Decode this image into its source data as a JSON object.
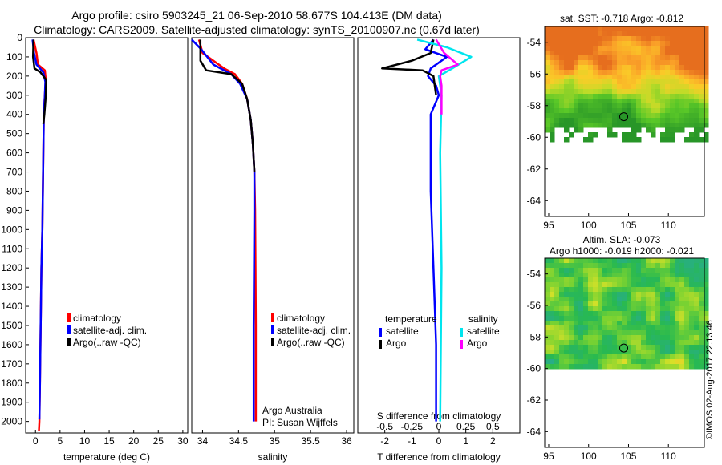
{
  "title": {
    "line1": "Argo profile: csiro 5903245_21 06-Sep-2010 58.677S 104.413E (DM data)",
    "line2": "Climatology: CARS2009. Satellite-adjusted climatology: synTS_20100907.nc (0.67d later)"
  },
  "credit": "©IMOS 02-Aug-2017 22:13:46",
  "colors": {
    "red": "#ff0000",
    "blue": "#0000ff",
    "black": "#000000",
    "cyan": "#00e5ee",
    "magenta": "#ff00ff"
  },
  "chart_data": [
    {
      "type": "line",
      "xlabel": "temperature (deg C)",
      "xlim": [
        -2,
        31
      ],
      "xticks": [
        0,
        5,
        10,
        15,
        20,
        25,
        30
      ],
      "ylim": [
        2060,
        0
      ],
      "yticks": [
        0,
        100,
        200,
        300,
        400,
        500,
        600,
        700,
        800,
        900,
        1000,
        1100,
        1200,
        1300,
        1400,
        1500,
        1600,
        1700,
        1800,
        1900,
        2000
      ],
      "legend": [
        "climatology",
        "satellite-adj. clim.",
        "Argo(..raw -QC)"
      ],
      "legend_placement": "lower-center",
      "series": [
        {
          "name": "climatology",
          "color": "red",
          "x": [
            -0.4,
            0.2,
            0.5,
            1.9,
            2.1,
            1.9,
            1.7,
            1.6,
            1.5,
            1.4,
            1.2,
            1.1,
            1.0,
            0.9,
            0.8,
            0.7
          ],
          "y": [
            10,
            80,
            140,
            170,
            220,
            300,
            400,
            600,
            800,
            1000,
            1200,
            1400,
            1600,
            1800,
            2000,
            2050
          ]
        },
        {
          "name": "satellite-adj. clim.",
          "color": "blue",
          "x": [
            -0.6,
            -0.3,
            0.2,
            1.6,
            2.0,
            1.9,
            1.7,
            1.6,
            1.5,
            1.4,
            1.2,
            1.1,
            1.0,
            0.9,
            0.8
          ],
          "y": [
            10,
            80,
            140,
            180,
            230,
            300,
            400,
            600,
            800,
            1000,
            1200,
            1400,
            1600,
            1800,
            1990
          ]
        },
        {
          "name": "Argo(..raw -QC)",
          "color": "black",
          "x": [
            -0.4,
            -0.5,
            -0.2,
            1.0,
            2.2,
            2.1,
            1.8,
            1.6
          ],
          "y": [
            10,
            100,
            160,
            180,
            220,
            300,
            400,
            450
          ]
        }
      ]
    },
    {
      "type": "line",
      "xlabel": "salinity",
      "xlim": [
        33.85,
        36.1
      ],
      "xticks": [
        34,
        34.5,
        35,
        35.5,
        36
      ],
      "ylim": [
        2060,
        0
      ],
      "legend": [
        "climatology",
        "satellite-adj. clim.",
        "Argo(..raw -QC)"
      ],
      "legend_placement": "lower-center",
      "annotation": [
        "Argo Australia",
        "PI: Susan Wijffels"
      ],
      "series": [
        {
          "name": "climatology",
          "color": "red",
          "x": [
            33.95,
            34.0,
            34.3,
            34.45,
            34.55,
            34.62,
            34.67,
            34.7,
            34.72,
            34.73,
            34.735,
            34.74,
            34.74,
            34.74
          ],
          "y": [
            10,
            80,
            160,
            190,
            240,
            320,
            430,
            560,
            700,
            900,
            1200,
            1500,
            1800,
            2000
          ]
        },
        {
          "name": "satellite-adj. clim.",
          "color": "blue",
          "x": [
            33.85,
            33.98,
            34.15,
            34.4,
            34.52,
            34.62,
            34.67,
            34.7,
            34.72,
            34.72,
            34.71,
            34.71
          ],
          "y": [
            10,
            60,
            140,
            190,
            240,
            320,
            430,
            560,
            700,
            900,
            1500,
            2000
          ]
        },
        {
          "name": "Argo(..raw -QC)",
          "color": "black",
          "x": [
            33.97,
            33.97,
            34.05,
            34.4,
            34.55,
            34.62,
            34.67,
            34.7,
            34.72
          ],
          "y": [
            10,
            120,
            170,
            190,
            240,
            320,
            430,
            560,
            700
          ]
        }
      ]
    },
    {
      "type": "line",
      "xlabel": "T difference from climatology",
      "xlabel_top": "S difference from climatology",
      "xlim": [
        -3,
        3
      ],
      "xticks": [
        -2,
        -1,
        0,
        1,
        2
      ],
      "xticks_top": [
        -0.5,
        -0.25,
        0,
        0.25,
        0.5
      ],
      "ylim": [
        2060,
        0
      ],
      "legend_temperature_title": "temperature",
      "legend_salinity_title": "salinity",
      "legend_temperature": [
        "satellite",
        "Argo"
      ],
      "legend_salinity": [
        "satellite",
        "Argo"
      ],
      "series": [
        {
          "name": "satellite",
          "group": "temperature",
          "color": "blue",
          "x": [
            -0.2,
            -0.5,
            0.3,
            -0.3,
            -0.4,
            -0.1,
            0.0,
            -0.3,
            -0.3,
            -0.2,
            -0.1,
            -0.1
          ],
          "y": [
            10,
            60,
            100,
            160,
            200,
            250,
            300,
            400,
            800,
            1200,
            1600,
            2000
          ]
        },
        {
          "name": "Argo",
          "group": "temperature",
          "color": "black",
          "x": [
            -0.2,
            -0.3,
            -1.0,
            -2.1,
            -0.6,
            -0.2,
            -0.1
          ],
          "y": [
            10,
            80,
            120,
            160,
            170,
            200,
            300
          ]
        },
        {
          "name": "satellite",
          "group": "salinity",
          "color": "cyan",
          "x": [
            -0.8,
            0.3,
            1.2,
            0.5,
            0.0,
            0.1,
            0.05,
            0.1,
            0.05
          ],
          "y": [
            10,
            50,
            100,
            160,
            200,
            300,
            600,
            1200,
            2000
          ]
        },
        {
          "name": "Argo",
          "group": "salinity",
          "color": "magenta",
          "x": [
            -0.1,
            0.2,
            0.7,
            0.1,
            0.05,
            0.1,
            0.1
          ],
          "y": [
            10,
            80,
            140,
            170,
            200,
            250,
            400
          ]
        }
      ]
    },
    {
      "type": "heatmap",
      "title": "sat. SST: -0.718 Argo: -0.812",
      "xticks": [
        95,
        100,
        105,
        110
      ],
      "yticks": [
        -54,
        -56,
        -58,
        -60,
        -62,
        -64
      ],
      "xlim": [
        94.5,
        114.5
      ],
      "ylim": [
        -65,
        -53
      ],
      "argo_position": [
        104.4,
        -58.7
      ]
    },
    {
      "type": "heatmap",
      "title": "Altim. SLA: -0.073",
      "subtitle": "Argo h1000: -0.019 h2000: -0.021",
      "xticks": [
        95,
        100,
        105,
        110
      ],
      "yticks": [
        -54,
        -56,
        -58,
        -60,
        -62,
        -64
      ],
      "xlim": [
        94.5,
        114.5
      ],
      "ylim": [
        -65,
        -53
      ],
      "argo_position": [
        104.4,
        -58.7
      ]
    }
  ]
}
